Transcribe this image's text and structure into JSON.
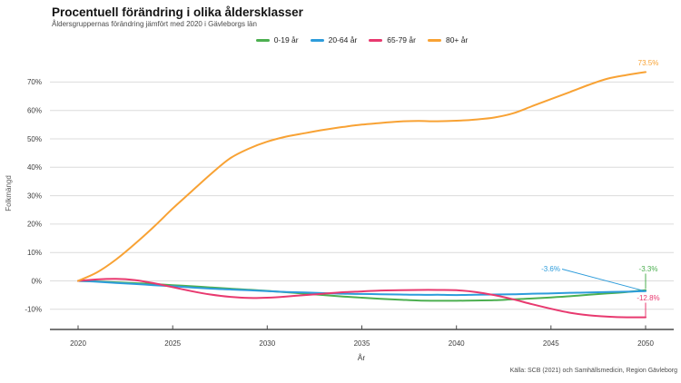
{
  "header": {
    "title": "Procentuell förändring i olika åldersklasser",
    "subtitle": "Åldersgruppernas förändring jämfört med 2020 i Gävleborgs län"
  },
  "legend": {
    "items": [
      {
        "label": "0-19 år"
      },
      {
        "label": "20-64 år"
      },
      {
        "label": "65-79 år"
      },
      {
        "label": "80+ år"
      }
    ]
  },
  "chart_data": {
    "type": "line",
    "title": "Procentuell förändring i olika åldersklasser",
    "subtitle": "Åldersgruppernas förändring jämfört med 2020 i Gävleborgs län",
    "xlabel": "År",
    "ylabel": "Folkmängd",
    "grid": true,
    "legend_position": "top",
    "xlim": [
      2020,
      2050
    ],
    "ylim": [
      -15,
      77
    ],
    "x": [
      2020,
      2021,
      2022,
      2023,
      2024,
      2025,
      2026,
      2027,
      2028,
      2029,
      2030,
      2031,
      2032,
      2033,
      2034,
      2035,
      2036,
      2037,
      2038,
      2039,
      2040,
      2041,
      2042,
      2043,
      2044,
      2045,
      2046,
      2047,
      2048,
      2049,
      2050
    ],
    "x_ticks": [
      2020,
      2025,
      2030,
      2035,
      2040,
      2045,
      2050
    ],
    "y_ticks": [
      70,
      60,
      50,
      40,
      30,
      20,
      10,
      0,
      -10
    ],
    "y_tick_labels": [
      "70%",
      "60%",
      "50%",
      "40%",
      "30%",
      "20%",
      "10%",
      "0%",
      "-10%"
    ],
    "series": [
      {
        "name": "0-19 år",
        "color": "#4CAF50",
        "end_label": "-3.3%",
        "values": [
          0,
          -0.2,
          -0.5,
          -0.8,
          -1.1,
          -1.5,
          -1.9,
          -2.3,
          -2.7,
          -3.1,
          -3.5,
          -4,
          -4.5,
          -5,
          -5.5,
          -5.9,
          -6.3,
          -6.6,
          -6.9,
          -7,
          -7,
          -6.9,
          -6.8,
          -6.5,
          -6.2,
          -5.8,
          -5.4,
          -4.9,
          -4.4,
          -3.9,
          -3.3
        ]
      },
      {
        "name": "20-64 år",
        "color": "#2D9CDB",
        "end_label": "-3.6%",
        "values": [
          0,
          -0.3,
          -0.7,
          -1.1,
          -1.5,
          -1.9,
          -2.3,
          -2.7,
          -3,
          -3.3,
          -3.6,
          -3.9,
          -4.1,
          -4.3,
          -4.5,
          -4.6,
          -4.7,
          -4.8,
          -4.9,
          -4.9,
          -5,
          -4.9,
          -4.8,
          -4.7,
          -4.5,
          -4.4,
          -4.2,
          -4.1,
          -3.9,
          -3.8,
          -3.6
        ]
      },
      {
        "name": "65-79 år",
        "color": "#E8396F",
        "end_label": "-12.8%",
        "values": [
          0,
          0.5,
          0.7,
          0.3,
          -0.8,
          -2.2,
          -3.6,
          -4.8,
          -5.6,
          -6,
          -5.9,
          -5.5,
          -5,
          -4.5,
          -4,
          -3.7,
          -3.4,
          -3.3,
          -3.2,
          -3.2,
          -3.3,
          -3.9,
          -5,
          -6.5,
          -8.2,
          -9.8,
          -11.2,
          -12.1,
          -12.6,
          -12.8,
          -12.8
        ]
      },
      {
        "name": "80+ år",
        "color": "#F8A234",
        "end_label": "73.5%",
        "values": [
          0,
          3,
          7.5,
          13,
          19,
          25.5,
          31.5,
          37.5,
          43,
          46.5,
          49,
          50.8,
          52,
          53.2,
          54.2,
          55,
          55.6,
          56.1,
          56.3,
          56.2,
          56.4,
          56.8,
          57.5,
          59,
          61.5,
          64,
          66.5,
          69,
          71.2,
          72.5,
          73.5
        ]
      }
    ]
  },
  "footer": {
    "source": "Källa: SCB (2021) och Samhällsmedicin, Region Gävleborg"
  }
}
